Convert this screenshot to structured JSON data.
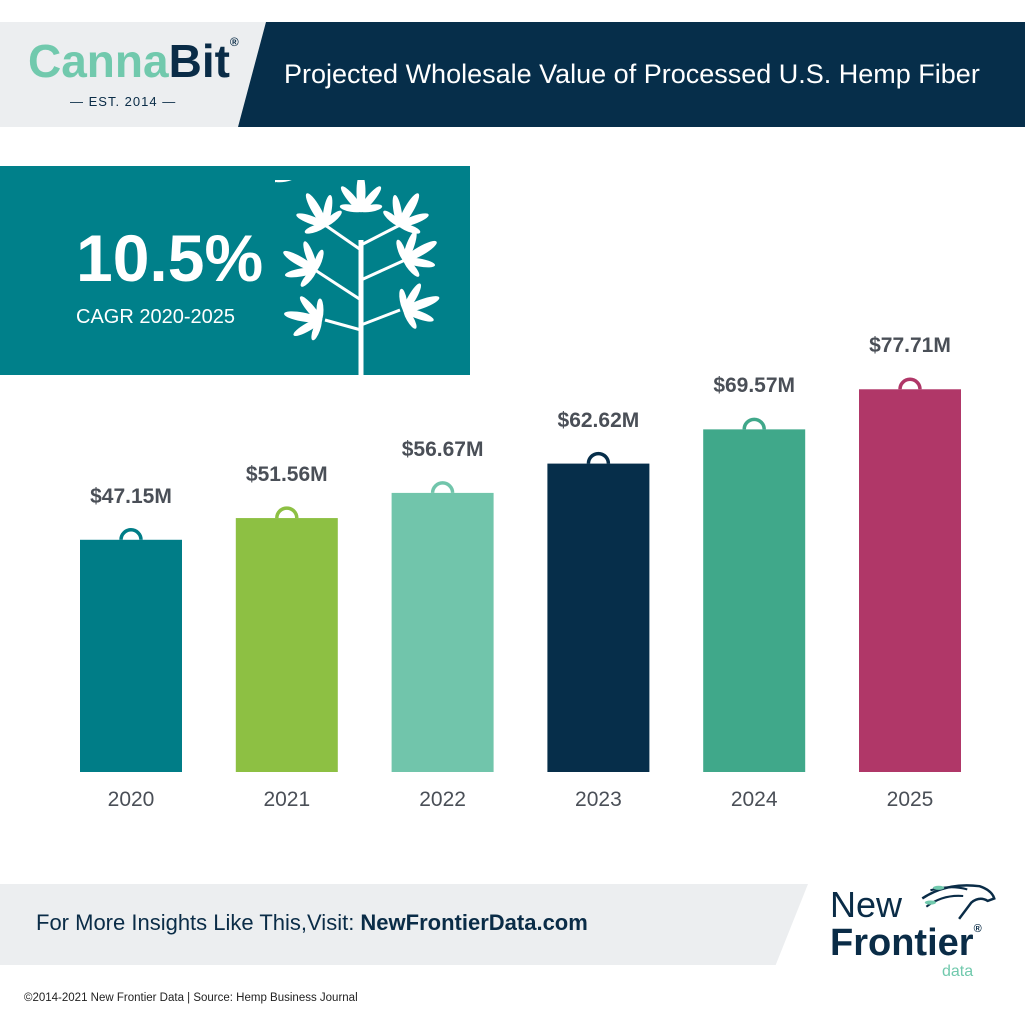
{
  "header": {
    "logo": {
      "part1": "Canna",
      "part2": "Bit",
      "reg": "®",
      "tagline": "— EST. 2014 —"
    },
    "title": "Projected Wholesale Value of Processed U.S. Hemp Fiber"
  },
  "highlight": {
    "value": "10.5%",
    "label": "CAGR 2020-2025",
    "icon": "hemp-plant-icon"
  },
  "chart_data": {
    "type": "bar",
    "title": "Projected Wholesale Value of Processed U.S. Hemp Fiber",
    "categories": [
      "2020",
      "2021",
      "2022",
      "2023",
      "2024",
      "2025"
    ],
    "values": [
      47.15,
      51.56,
      56.67,
      62.62,
      69.57,
      77.71
    ],
    "data_labels": [
      "$47.15M",
      "$51.56M",
      "$56.67M",
      "$62.62M",
      "$69.57M",
      "$77.71M"
    ],
    "unit": "USD millions",
    "colors": [
      "#007d87",
      "#8dc043",
      "#71c5ab",
      "#062e4a",
      "#40a88a",
      "#b03768"
    ],
    "ylim": [
      0,
      80
    ],
    "grid": false,
    "xlabel": "",
    "ylabel": ""
  },
  "footer": {
    "cta_prefix": "For More Insights Like This,Visit: ",
    "cta_link": "NewFrontierData.com",
    "brand": {
      "line1": "New",
      "line2": "Frontier",
      "reg": "®",
      "line3": "data"
    },
    "copyright": "©2014-2021  New Frontier Data | Source: Hemp Business Journal"
  }
}
